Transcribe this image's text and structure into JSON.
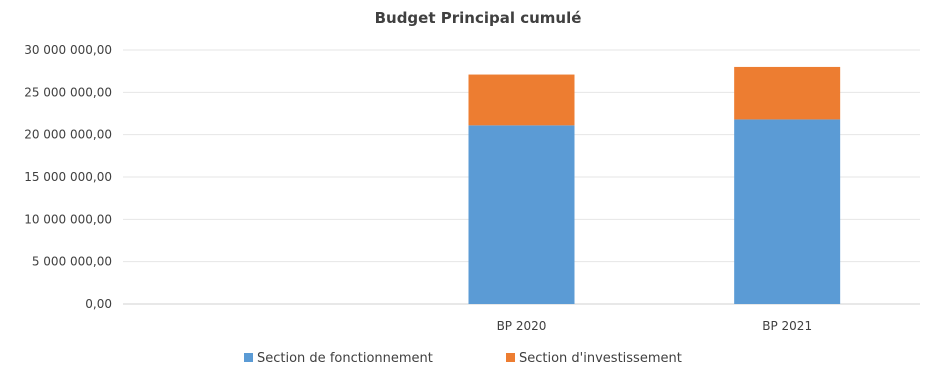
{
  "chart_data": {
    "type": "bar",
    "stacked": true,
    "title": "Budget Principal cumulé",
    "categories": [
      "",
      "BP 2020",
      "BP 2021"
    ],
    "series": [
      {
        "name": "Section de fonctionnement",
        "color": "#5B9BD5",
        "values": [
          0,
          21100000,
          21800000
        ]
      },
      {
        "name": "Section d'investissement",
        "color": "#ED7D31",
        "values": [
          0,
          6000000,
          6200000
        ]
      }
    ],
    "ylim": [
      0,
      30000000
    ],
    "yticks": [
      "0,00",
      "5 000 000,00",
      "10 000 000,00",
      "15 000 000,00",
      "20 000 000,00",
      "25 000 000,00",
      "30 000 000,00"
    ],
    "ytick_values": [
      0,
      5000000,
      10000000,
      15000000,
      20000000,
      25000000,
      30000000
    ],
    "grid": true,
    "legend_position": "bottom"
  }
}
